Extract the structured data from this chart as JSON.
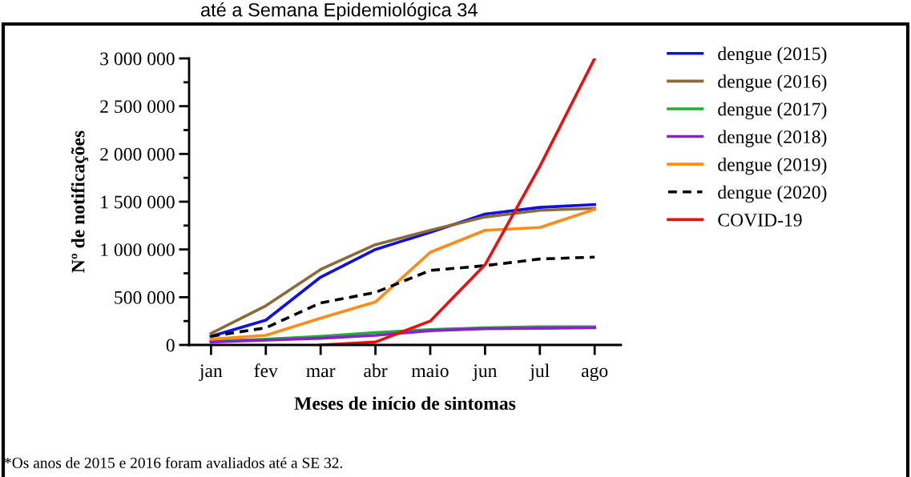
{
  "chart_data": {
    "type": "line",
    "title": "até a Semana Epidemiológica 34",
    "xlabel": "Meses de início de sintomas",
    "ylabel": "Nº de notificações",
    "categories": [
      "jan",
      "fev",
      "mar",
      "abr",
      "maio",
      "jun",
      "jul",
      "ago"
    ],
    "series": [
      {
        "name": "dengue (2015)",
        "color": "#1010e0",
        "values": [
          90000,
          260000,
          710000,
          1000000,
          1180000,
          1370000,
          1440000,
          1470000
        ]
      },
      {
        "name": "dengue (2016)",
        "color": "#8b6a3a",
        "values": [
          120000,
          410000,
          790000,
          1050000,
          1200000,
          1340000,
          1410000,
          1430000
        ]
      },
      {
        "name": "dengue (2017)",
        "color": "#20b030",
        "values": [
          40000,
          60000,
          90000,
          130000,
          160000,
          180000,
          190000,
          190000
        ]
      },
      {
        "name": "dengue (2018)",
        "color": "#8a20d0",
        "values": [
          30000,
          50000,
          70000,
          100000,
          150000,
          170000,
          175000,
          180000
        ]
      },
      {
        "name": "dengue (2019)",
        "color": "#ff8c1a",
        "values": [
          60000,
          100000,
          280000,
          450000,
          970000,
          1200000,
          1230000,
          1420000
        ]
      },
      {
        "name": "dengue (2020)",
        "color": "#000000",
        "line_style": "dashed",
        "values": [
          90000,
          180000,
          440000,
          550000,
          780000,
          830000,
          900000,
          920000
        ]
      },
      {
        "name": "COVID-19",
        "color": "#e81010",
        "values": [
          null,
          null,
          0,
          30000,
          250000,
          840000,
          1870000,
          3000000
        ]
      }
    ],
    "ylim": [
      0,
      3000000
    ],
    "yticks": [
      {
        "value": 0,
        "label": "0"
      },
      {
        "value": 250000,
        "label": null
      },
      {
        "value": 500000,
        "label": "500 000"
      },
      {
        "value": 750000,
        "label": null
      },
      {
        "value": 1000000,
        "label": "1 000 000"
      },
      {
        "value": 1250000,
        "label": null
      },
      {
        "value": 1500000,
        "label": "1 500 000"
      },
      {
        "value": 1750000,
        "label": null
      },
      {
        "value": 2000000,
        "label": "2 000 000"
      },
      {
        "value": 2250000,
        "label": null
      },
      {
        "value": 2500000,
        "label": "2 500 000"
      },
      {
        "value": 2750000,
        "label": null
      },
      {
        "value": 3000000,
        "label": "3 000 000"
      }
    ],
    "grid": false,
    "legend": "top right",
    "line_style": "solid",
    "annotations": [
      "*Os anos de 2015 e 2016 foram avaliados até a SE 32."
    ]
  }
}
